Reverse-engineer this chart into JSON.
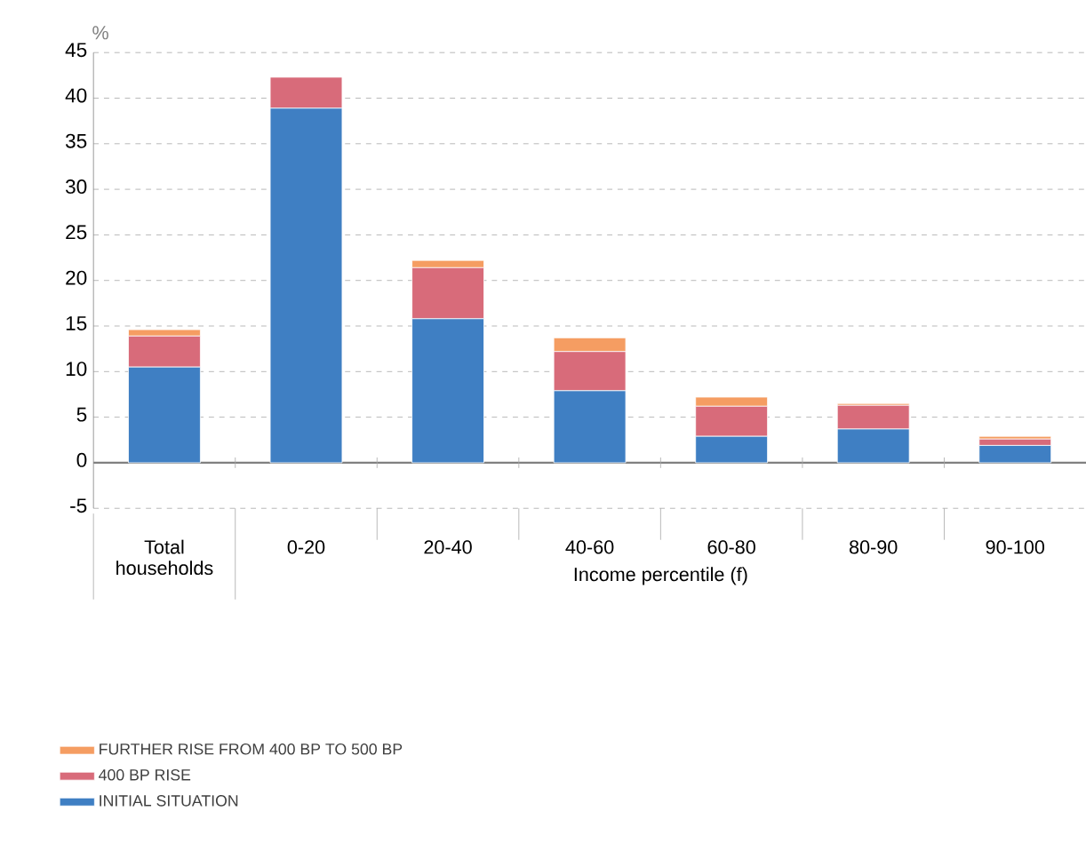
{
  "chart_data": {
    "type": "bar",
    "stacked": true,
    "ylabel": "%",
    "xlabel": "Income percentile (f)",
    "categories": [
      "Total households",
      "0-20",
      "20-40",
      "40-60",
      "60-80",
      "80-90",
      "90-100"
    ],
    "series": [
      {
        "name": "INITIAL SITUATION",
        "color": "#3f7fc3",
        "values": [
          10.5,
          38.9,
          15.8,
          7.9,
          2.9,
          3.7,
          1.9
        ]
      },
      {
        "name": "400 BP RISE",
        "color": "#d86b7a",
        "values": [
          3.4,
          3.4,
          5.6,
          4.3,
          3.3,
          2.6,
          0.7
        ]
      },
      {
        "name": "FURTHER RISE FROM 400 BP TO 500 BP",
        "color": "#f59d62",
        "values": [
          0.7,
          0,
          0.8,
          1.5,
          1.0,
          0.2,
          0.3
        ]
      }
    ],
    "ylim": [
      -5,
      45
    ],
    "yticks": [
      -5,
      0,
      5,
      10,
      15,
      20,
      25,
      30,
      35,
      40,
      45
    ],
    "grid": "y",
    "legend": "bottom left"
  }
}
